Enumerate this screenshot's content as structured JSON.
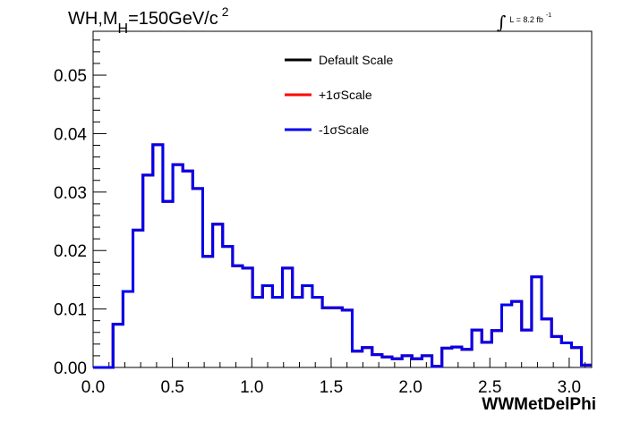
{
  "chart_data": {
    "type": "histogram",
    "title": {
      "main": "WH,M",
      "sub": "H",
      "rest": "=150GeV/c",
      "sup": "2"
    },
    "luminosity": {
      "integral": "∫",
      "text": "L = 8.2 fb",
      "sup": "-1"
    },
    "xlabel": "WWMetDelPhi",
    "ylabel": "",
    "xlim": [
      0.0,
      3.1416
    ],
    "ylim": [
      0.0,
      0.0575
    ],
    "x_ticks": [
      0.0,
      0.5,
      1.0,
      1.5,
      2.0,
      2.5,
      3.0
    ],
    "x_tick_labels": [
      "0.0",
      "0.5",
      "1.0",
      "1.5",
      "2.0",
      "2.5",
      "3.0"
    ],
    "y_ticks": [
      0.0,
      0.01,
      0.02,
      0.03,
      0.04,
      0.05
    ],
    "y_tick_labels": [
      "0.00",
      "0.01",
      "0.02",
      "0.03",
      "0.04",
      "0.05"
    ],
    "bin_edges_start": 0.0,
    "bin_width": 0.0628,
    "series": [
      {
        "name": "Default Scale",
        "color": "#000000",
        "values": [
          0.0,
          0.0,
          0.0074,
          0.013,
          0.0235,
          0.0329,
          0.0381,
          0.0284,
          0.0347,
          0.0336,
          0.0306,
          0.019,
          0.0245,
          0.0207,
          0.0174,
          0.017,
          0.012,
          0.014,
          0.012,
          0.017,
          0.012,
          0.014,
          0.012,
          0.0102,
          0.0102,
          0.0098,
          0.0028,
          0.0034,
          0.0022,
          0.0018,
          0.0015,
          0.002,
          0.0015,
          0.002,
          0.0002,
          0.0033,
          0.0035,
          0.0031,
          0.0064,
          0.0043,
          0.0063,
          0.0107,
          0.0113,
          0.0064,
          0.0155,
          0.0083,
          0.0053,
          0.0042,
          0.0034,
          0.0004
        ]
      },
      {
        "name": "+1σScale",
        "color": "#ff0000",
        "values": [
          0.0,
          0.0,
          0.0074,
          0.013,
          0.0235,
          0.0329,
          0.0381,
          0.0284,
          0.0347,
          0.0336,
          0.0306,
          0.019,
          0.0245,
          0.0207,
          0.0174,
          0.017,
          0.012,
          0.014,
          0.012,
          0.017,
          0.012,
          0.014,
          0.012,
          0.0102,
          0.0102,
          0.0098,
          0.0028,
          0.0034,
          0.0022,
          0.0018,
          0.0015,
          0.002,
          0.0015,
          0.002,
          0.0002,
          0.0033,
          0.0035,
          0.0031,
          0.0064,
          0.0043,
          0.0063,
          0.0107,
          0.0113,
          0.0064,
          0.0155,
          0.0083,
          0.0053,
          0.0042,
          0.0034,
          0.0004
        ]
      },
      {
        "name": "-1σScale",
        "color": "#0000ee",
        "values": [
          0.0,
          0.0,
          0.0074,
          0.013,
          0.0235,
          0.0329,
          0.0381,
          0.0284,
          0.0347,
          0.0336,
          0.0306,
          0.019,
          0.0245,
          0.0207,
          0.0174,
          0.017,
          0.012,
          0.014,
          0.012,
          0.017,
          0.012,
          0.014,
          0.012,
          0.0102,
          0.0102,
          0.0098,
          0.0028,
          0.0034,
          0.0022,
          0.0018,
          0.0015,
          0.002,
          0.0015,
          0.002,
          0.0002,
          0.0033,
          0.0035,
          0.0031,
          0.0064,
          0.0043,
          0.0063,
          0.0107,
          0.0113,
          0.0064,
          0.0155,
          0.0083,
          0.0053,
          0.0042,
          0.0034,
          0.0004
        ]
      }
    ],
    "legend": {
      "position": "top-center",
      "entries": [
        "Default Scale",
        "+1σScale",
        "-1σScale"
      ]
    },
    "grid": false
  }
}
